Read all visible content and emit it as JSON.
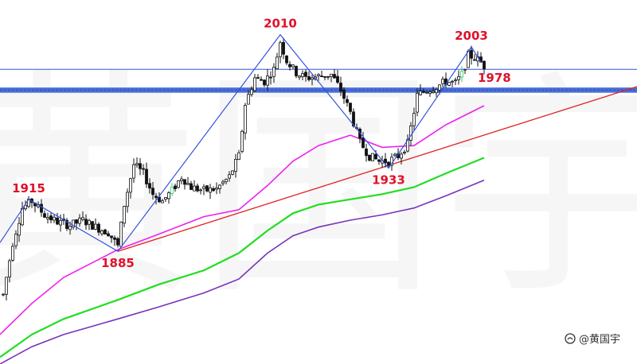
{
  "chart_data": {
    "type": "candlestick",
    "title": "",
    "xlabel": "",
    "ylabel": "",
    "xlim": [
      0,
      100
    ],
    "ylim": [
      1820,
      2030
    ],
    "grid": false,
    "colors": {
      "candle": "#111111",
      "candle_highlight": "#2ecc71",
      "ma_fast": "#ee22ee",
      "ma_mid": "#22dd22",
      "ma_slow": "#7733bb",
      "trendline": "#e02222",
      "wave": "#3355dd",
      "resistance": "#3355dd",
      "support_band": "#4a6fd8",
      "label": "#e0102a"
    },
    "key_points": [
      {
        "label": "1915",
        "x": 4.5,
        "y": 1915
      },
      {
        "label": "1885",
        "x": 18.5,
        "y": 1885
      },
      {
        "label": "2010",
        "x": 44,
        "y": 2010
      },
      {
        "label": "1933",
        "x": 61,
        "y": 1933
      },
      {
        "label": "2003",
        "x": 74,
        "y": 2003
      }
    ],
    "zigzag": [
      {
        "x": 0,
        "y": 1890
      },
      {
        "x": 4.5,
        "y": 1915
      },
      {
        "x": 18.5,
        "y": 1885
      },
      {
        "x": 44,
        "y": 2010
      },
      {
        "x": 61,
        "y": 1933
      },
      {
        "x": 74,
        "y": 2003
      },
      {
        "x": 75.5,
        "y": 1994
      }
    ],
    "resistance_level": 1990,
    "support_band": {
      "label": "1978",
      "y_low": 1976.5,
      "y_high": 1979.5
    },
    "trendline": [
      {
        "x": 18.5,
        "y": 1885
      },
      {
        "x": 100,
        "y": 1980
      }
    ],
    "ma_fast": [
      {
        "x": 0,
        "y": 1837
      },
      {
        "x": 5,
        "y": 1855
      },
      {
        "x": 10,
        "y": 1870
      },
      {
        "x": 18.5,
        "y": 1886
      },
      {
        "x": 25,
        "y": 1895
      },
      {
        "x": 32,
        "y": 1905
      },
      {
        "x": 37.5,
        "y": 1909
      },
      {
        "x": 42,
        "y": 1923
      },
      {
        "x": 46,
        "y": 1937
      },
      {
        "x": 50,
        "y": 1946
      },
      {
        "x": 55,
        "y": 1952
      },
      {
        "x": 60,
        "y": 1945
      },
      {
        "x": 65,
        "y": 1946
      },
      {
        "x": 70,
        "y": 1958
      },
      {
        "x": 76,
        "y": 1969
      }
    ],
    "ma_mid": [
      {
        "x": 0,
        "y": 1824
      },
      {
        "x": 5,
        "y": 1837
      },
      {
        "x": 10,
        "y": 1846
      },
      {
        "x": 18.5,
        "y": 1857
      },
      {
        "x": 25,
        "y": 1866
      },
      {
        "x": 32,
        "y": 1874
      },
      {
        "x": 37.5,
        "y": 1884
      },
      {
        "x": 42,
        "y": 1897
      },
      {
        "x": 46,
        "y": 1907
      },
      {
        "x": 50,
        "y": 1912
      },
      {
        "x": 55,
        "y": 1915
      },
      {
        "x": 60,
        "y": 1918
      },
      {
        "x": 65,
        "y": 1922
      },
      {
        "x": 70,
        "y": 1930
      },
      {
        "x": 76,
        "y": 1939
      }
    ],
    "ma_slow": [
      {
        "x": 0,
        "y": 1820
      },
      {
        "x": 5,
        "y": 1830
      },
      {
        "x": 10,
        "y": 1837
      },
      {
        "x": 18.5,
        "y": 1846
      },
      {
        "x": 25,
        "y": 1853
      },
      {
        "x": 32,
        "y": 1861
      },
      {
        "x": 37.5,
        "y": 1869
      },
      {
        "x": 42,
        "y": 1884
      },
      {
        "x": 46,
        "y": 1894
      },
      {
        "x": 50,
        "y": 1899
      },
      {
        "x": 55,
        "y": 1903
      },
      {
        "x": 60,
        "y": 1906
      },
      {
        "x": 65,
        "y": 1910
      },
      {
        "x": 70,
        "y": 1917
      },
      {
        "x": 76,
        "y": 1926
      }
    ],
    "candles_anchor": [
      {
        "x": 0.5,
        "y": 1860
      },
      {
        "x": 2,
        "y": 1890
      },
      {
        "x": 3.5,
        "y": 1910
      },
      {
        "x": 5,
        "y": 1914
      },
      {
        "x": 7,
        "y": 1906
      },
      {
        "x": 9,
        "y": 1902
      },
      {
        "x": 11,
        "y": 1900
      },
      {
        "x": 13,
        "y": 1903
      },
      {
        "x": 15,
        "y": 1899
      },
      {
        "x": 17,
        "y": 1896
      },
      {
        "x": 18.5,
        "y": 1888
      },
      {
        "x": 19.5,
        "y": 1912
      },
      {
        "x": 21,
        "y": 1935
      },
      {
        "x": 22.5,
        "y": 1930
      },
      {
        "x": 24,
        "y": 1918
      },
      {
        "x": 25.5,
        "y": 1914
      },
      {
        "x": 27,
        "y": 1920
      },
      {
        "x": 28.5,
        "y": 1928
      },
      {
        "x": 30,
        "y": 1922
      },
      {
        "x": 32,
        "y": 1920
      },
      {
        "x": 34,
        "y": 1921
      },
      {
        "x": 36,
        "y": 1928
      },
      {
        "x": 37.5,
        "y": 1940
      },
      {
        "x": 38.5,
        "y": 1970
      },
      {
        "x": 40,
        "y": 1985
      },
      {
        "x": 41.5,
        "y": 1983
      },
      {
        "x": 43,
        "y": 1990
      },
      {
        "x": 44,
        "y": 2006
      },
      {
        "x": 45,
        "y": 1995
      },
      {
        "x": 46.5,
        "y": 1988
      },
      {
        "x": 48,
        "y": 1985
      },
      {
        "x": 50,
        "y": 1986
      },
      {
        "x": 52,
        "y": 1987
      },
      {
        "x": 53.5,
        "y": 1978
      },
      {
        "x": 55,
        "y": 1965
      },
      {
        "x": 56.5,
        "y": 1948
      },
      {
        "x": 58,
        "y": 1940
      },
      {
        "x": 59.5,
        "y": 1937
      },
      {
        "x": 61,
        "y": 1937
      },
      {
        "x": 62.5,
        "y": 1940
      },
      {
        "x": 64,
        "y": 1947
      },
      {
        "x": 65.5,
        "y": 1975
      },
      {
        "x": 67,
        "y": 1978
      },
      {
        "x": 68.5,
        "y": 1980
      },
      {
        "x": 70,
        "y": 1983
      },
      {
        "x": 71.5,
        "y": 1982
      },
      {
        "x": 72.5,
        "y": 1987
      },
      {
        "x": 73.5,
        "y": 1998
      },
      {
        "x": 74.5,
        "y": 1997
      },
      {
        "x": 75.5,
        "y": 1994
      },
      {
        "x": 76,
        "y": 1992
      }
    ],
    "highlight_candles": [
      27,
      72.5
    ]
  },
  "labels": {
    "level_1978": "1978",
    "watermark": "@黄国宇",
    "bg_watermark": "黄国宇"
  }
}
